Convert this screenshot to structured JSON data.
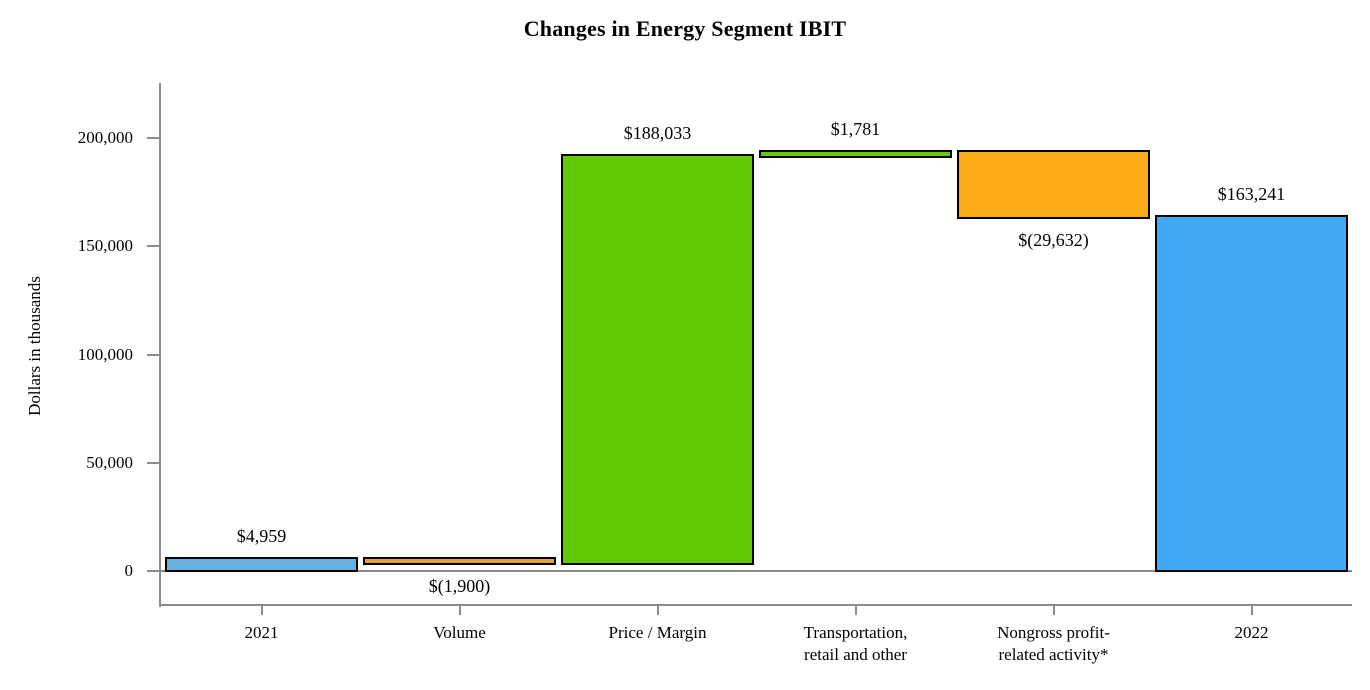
{
  "chart_data": {
    "type": "bar",
    "subtype": "waterfall",
    "title": "Changes in Energy Segment IBIT",
    "ylabel": "Dollars in thousands",
    "xlabel": "",
    "ylim": [
      0,
      225000
    ],
    "grid": "off",
    "legend": "none",
    "axis_color": "#8c8c8c",
    "bar_border_color": "#000000",
    "yticks": [
      {
        "value": 0,
        "label": "0"
      },
      {
        "value": 50000,
        "label": "50,000"
      },
      {
        "value": 100000,
        "label": "100,000"
      },
      {
        "value": 150000,
        "label": "150,000"
      },
      {
        "value": 200000,
        "label": "200,000"
      }
    ],
    "bars": [
      {
        "category_lines": [
          "2021"
        ],
        "value": 4959,
        "start": 0,
        "end": 4959,
        "value_label": "$4,959",
        "label_position": "above",
        "color": "#66b1e1"
      },
      {
        "category_lines": [
          "Volume"
        ],
        "value": -1900,
        "start": 4959,
        "end": 3059,
        "value_label": "$(1,900)",
        "label_position": "below",
        "color": "#e0a23c"
      },
      {
        "category_lines": [
          "Price / Margin"
        ],
        "value": 188033,
        "start": 3059,
        "end": 191092,
        "value_label": "$188,033",
        "label_position": "above",
        "color": "#62c905"
      },
      {
        "category_lines": [
          "Transportation,",
          "retail and other"
        ],
        "value": 1781,
        "start": 191092,
        "end": 192873,
        "value_label": "$1,781",
        "label_position": "above",
        "color": "#62c905"
      },
      {
        "category_lines": [
          "Nongross profit-",
          "related activity*"
        ],
        "value": -29632,
        "start": 192873,
        "end": 163241,
        "value_label": "$(29,632)",
        "label_position": "below",
        "color": "#faac18"
      },
      {
        "category_lines": [
          "2022"
        ],
        "value": 163241,
        "start": 0,
        "end": 163241,
        "value_label": "$163,241",
        "label_position": "above",
        "color": "#3fa9f5"
      }
    ]
  }
}
